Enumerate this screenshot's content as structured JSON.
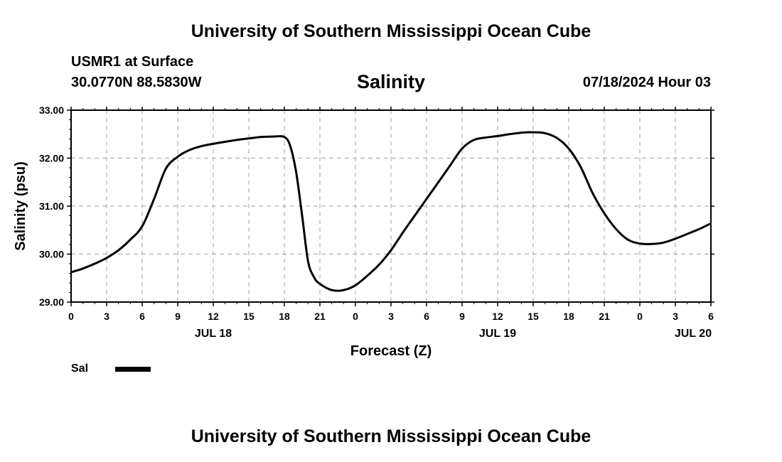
{
  "header": {
    "title": "University of Southern Mississippi Ocean Cube",
    "station": "USMR1 at Surface",
    "coordinates": "30.0770N  88.5830W",
    "variable": "Salinity",
    "datetime": "07/18/2024 Hour 03"
  },
  "footer": {
    "title": "University of Southern Mississippi Ocean Cube"
  },
  "legend": {
    "label": "Sal",
    "color": "#000000"
  },
  "chart_data": {
    "type": "line",
    "title": "Salinity",
    "xlabel": "Forecast (Z)",
    "ylabel": "Salinity (psu)",
    "xlim": [
      0,
      54
    ],
    "ylim": [
      29.0,
      33.0
    ],
    "grid": true,
    "y_ticks": [
      "29.00",
      "30.00",
      "31.00",
      "32.00",
      "33.00"
    ],
    "y_tick_values": [
      29,
      30,
      31,
      32,
      33
    ],
    "x_tick_hours": [
      0,
      3,
      6,
      9,
      12,
      15,
      18,
      21,
      24,
      27,
      30,
      33,
      36,
      39,
      42,
      45,
      48,
      51,
      54
    ],
    "x_tick_labels": [
      "0",
      "3",
      "6",
      "9",
      "12",
      "15",
      "18",
      "21",
      "0",
      "3",
      "6",
      "9",
      "12",
      "15",
      "18",
      "21",
      "0",
      "3",
      "6"
    ],
    "date_labels": [
      {
        "hour": 12,
        "label": "JUL 18"
      },
      {
        "hour": 36,
        "label": "JUL 19"
      },
      {
        "hour": 52.5,
        "label": "JUL 20"
      }
    ],
    "series": [
      {
        "name": "Sal",
        "x": [
          0,
          1,
          2,
          3,
          4,
          5,
          6,
          7,
          8,
          9,
          10,
          11,
          12,
          13,
          14,
          15,
          16,
          17,
          18,
          18.5,
          19,
          19.5,
          20,
          20.5,
          21,
          22,
          23,
          24,
          25,
          26,
          27,
          28,
          29,
          30,
          31,
          32,
          33,
          34,
          35,
          36,
          37,
          38,
          39,
          40,
          41,
          42,
          43,
          44,
          45,
          46,
          47,
          48,
          49,
          50,
          51,
          52,
          53,
          54
        ],
        "values": [
          29.62,
          29.7,
          29.8,
          29.92,
          30.08,
          30.3,
          30.58,
          31.15,
          31.78,
          32.03,
          32.17,
          32.25,
          32.3,
          32.34,
          32.38,
          32.41,
          32.44,
          32.45,
          32.44,
          32.25,
          31.7,
          30.8,
          29.85,
          29.52,
          29.38,
          29.25,
          29.25,
          29.35,
          29.55,
          29.78,
          30.08,
          30.45,
          30.8,
          31.15,
          31.5,
          31.85,
          32.2,
          32.38,
          32.43,
          32.46,
          32.5,
          32.53,
          32.54,
          32.52,
          32.42,
          32.2,
          31.82,
          31.28,
          30.85,
          30.52,
          30.3,
          30.22,
          30.21,
          30.24,
          30.32,
          30.42,
          30.52,
          30.64
        ],
        "color": "#000000"
      }
    ]
  }
}
